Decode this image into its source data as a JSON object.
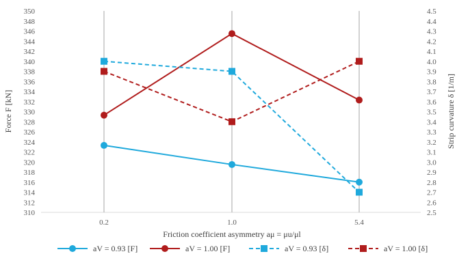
{
  "chart_data": {
    "type": "line",
    "categories": [
      "0.2",
      "1.0",
      "5.4"
    ],
    "xlabel": "Friction coefficient asymmetry aμ = μu/μl",
    "ylabel_left": "Force F [kN]",
    "ylabel_right": "Strip curvature δ [1/m]",
    "ylim_left": [
      310,
      350
    ],
    "ylim_right": [
      2.5,
      4.5
    ],
    "left_ticks": [
      "310",
      "312",
      "314",
      "316",
      "318",
      "320",
      "322",
      "324",
      "326",
      "328",
      "330",
      "332",
      "334",
      "336",
      "338",
      "340",
      "342",
      "344",
      "346",
      "348",
      "350"
    ],
    "right_ticks": [
      "2.5",
      "2.6",
      "2.7",
      "2.8",
      "2.9",
      "3.0",
      "3.1",
      "3.2",
      "3.3",
      "3.4",
      "3.5",
      "3.6",
      "3.7",
      "3.8",
      "3.9",
      "4.0",
      "4.1",
      "4.2",
      "4.3",
      "4.4",
      "4.5"
    ],
    "grid": "vertical",
    "legend_position": "bottom",
    "series": [
      {
        "name": "aV = 0.93 [F]",
        "axis": "left",
        "values": [
          323.3,
          319.5,
          316.0
        ],
        "color": "#1fa9dc",
        "dash": "solid",
        "marker": "circle"
      },
      {
        "name": "aV = 1.00 [F]",
        "axis": "left",
        "values": [
          329.3,
          345.5,
          332.3
        ],
        "color": "#b01c1c",
        "dash": "solid",
        "marker": "circle"
      },
      {
        "name": "aV = 0.93 [δ]",
        "axis": "right",
        "values": [
          4.0,
          3.9,
          2.7
        ],
        "color": "#1fa9dc",
        "dash": "dashed",
        "marker": "square"
      },
      {
        "name": "aV = 1.00 [δ]",
        "axis": "right",
        "values": [
          3.9,
          3.4,
          4.0
        ],
        "color": "#b01c1c",
        "dash": "dashed",
        "marker": "square"
      }
    ]
  }
}
